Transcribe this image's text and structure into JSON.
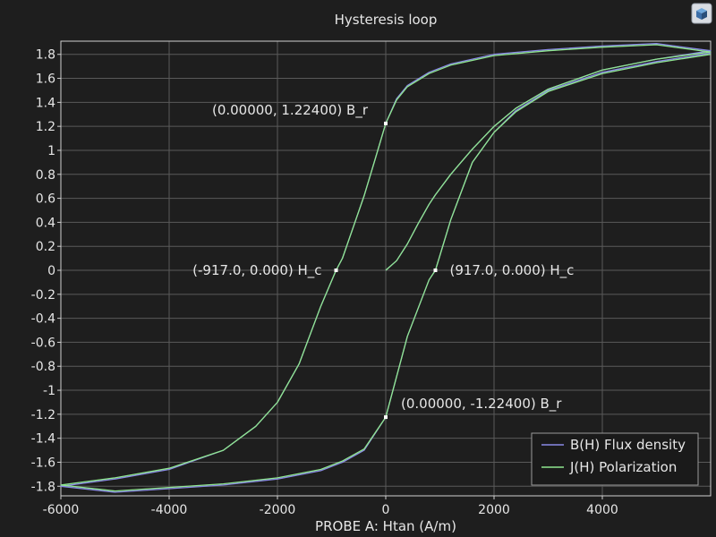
{
  "chart_data": {
    "type": "line",
    "title": "Hysteresis loop",
    "xlabel": "PROBE A: Htan (A/m)",
    "ylabel": "",
    "xlim": [
      -6000,
      6000
    ],
    "ylim": [
      -1.88,
      1.91
    ],
    "x_ticks": [
      -6000,
      -4000,
      -2000,
      0,
      2000,
      4000
    ],
    "x_tick_labels": [
      "-6000",
      "-4000",
      "-2000",
      "0",
      "2000",
      "4000"
    ],
    "y_ticks": [
      1.8,
      1.6,
      1.4,
      1.2,
      1,
      0.8,
      0.6,
      0.4,
      0.2,
      0,
      -0.2,
      -0.4,
      -0.6,
      -0.8,
      -1,
      -1.2,
      -1.4,
      -1.6,
      -1.8
    ],
    "y_tick_labels": [
      "1.8",
      "1.6",
      "1.4",
      "1.2",
      "1",
      "0.8",
      "0.6",
      "0.4",
      "0.2",
      "0",
      "-0.2",
      "-0.4",
      "-0.6",
      "-0.8",
      "-1",
      "-1.2",
      "-1.4",
      "-1.6",
      "-1.8"
    ],
    "grid": true,
    "legend_position": "bottom-right",
    "series": [
      {
        "name": "B(H) Flux density",
        "color": "#8a8ae6",
        "x": [
          0,
          200,
          400,
          600,
          800,
          917,
          1200,
          1600,
          2000,
          2400,
          3000,
          4000,
          5000,
          6000,
          5000,
          4000,
          3000,
          2000,
          1200,
          800,
          400,
          200,
          0,
          -200,
          -400,
          -600,
          -800,
          -917,
          -1200,
          -1600,
          -2000,
          -2400,
          -3000,
          -4000,
          -5000,
          -6000,
          -5000,
          -4000,
          -3000,
          -2000,
          -1200,
          -800,
          -400,
          0,
          400,
          800,
          917,
          1200,
          1600,
          2000,
          2400,
          3000,
          4000,
          5000,
          6000
        ],
        "y": [
          0,
          0.08,
          0.22,
          0.39,
          0.55,
          0.63,
          0.8,
          1.01,
          1.2,
          1.35,
          1.51,
          1.67,
          1.76,
          1.83,
          1.89,
          1.87,
          1.84,
          1.8,
          1.72,
          1.65,
          1.54,
          1.43,
          1.224,
          0.92,
          0.62,
          0.36,
          0.1,
          0,
          -0.3,
          -0.78,
          -1.1,
          -1.3,
          -1.5,
          -1.66,
          -1.74,
          -1.8,
          -1.85,
          -1.82,
          -1.79,
          -1.74,
          -1.67,
          -1.6,
          -1.5,
          -1.224,
          -0.55,
          -0.08,
          0,
          0.42,
          0.9,
          1.15,
          1.33,
          1.5,
          1.65,
          1.74,
          1.81
        ]
      },
      {
        "name": "J(H) Polarization",
        "color": "#8fe68f",
        "x": [
          0,
          200,
          400,
          600,
          800,
          917,
          1200,
          1600,
          2000,
          2400,
          3000,
          4000,
          5000,
          6000,
          5000,
          4000,
          3000,
          2000,
          1200,
          800,
          400,
          200,
          0,
          -200,
          -400,
          -600,
          -800,
          -917,
          -1200,
          -1600,
          -2000,
          -2400,
          -3000,
          -4000,
          -5000,
          -6000,
          -5000,
          -4000,
          -3000,
          -2000,
          -1200,
          -800,
          -400,
          0,
          400,
          800,
          917,
          1200,
          1600,
          2000,
          2400,
          3000,
          4000,
          5000,
          6000
        ],
        "y": [
          0,
          0.08,
          0.22,
          0.39,
          0.55,
          0.63,
          0.8,
          1.01,
          1.2,
          1.35,
          1.51,
          1.67,
          1.76,
          1.82,
          1.88,
          1.86,
          1.83,
          1.79,
          1.71,
          1.64,
          1.53,
          1.42,
          1.224,
          0.92,
          0.62,
          0.36,
          0.1,
          0,
          -0.3,
          -0.78,
          -1.1,
          -1.3,
          -1.5,
          -1.65,
          -1.73,
          -1.79,
          -1.84,
          -1.81,
          -1.78,
          -1.73,
          -1.66,
          -1.59,
          -1.49,
          -1.224,
          -0.55,
          -0.08,
          0,
          0.42,
          0.9,
          1.15,
          1.32,
          1.49,
          1.64,
          1.73,
          1.8
        ]
      }
    ],
    "annotations": [
      {
        "label": "(0.00000, 1.22400) B_r",
        "x": 0,
        "y": 1.224,
        "anchor": "left-of-point-above"
      },
      {
        "label": "(-917.0, 0.000) H_c",
        "x": -917,
        "y": 0,
        "anchor": "left-of-point"
      },
      {
        "label": "(917.0, 0.000) H_c",
        "x": 917,
        "y": 0,
        "anchor": "right-of-point"
      },
      {
        "label": "(0.00000, -1.22400) B_r",
        "x": 0,
        "y": -1.224,
        "anchor": "right-of-point-above"
      }
    ]
  }
}
